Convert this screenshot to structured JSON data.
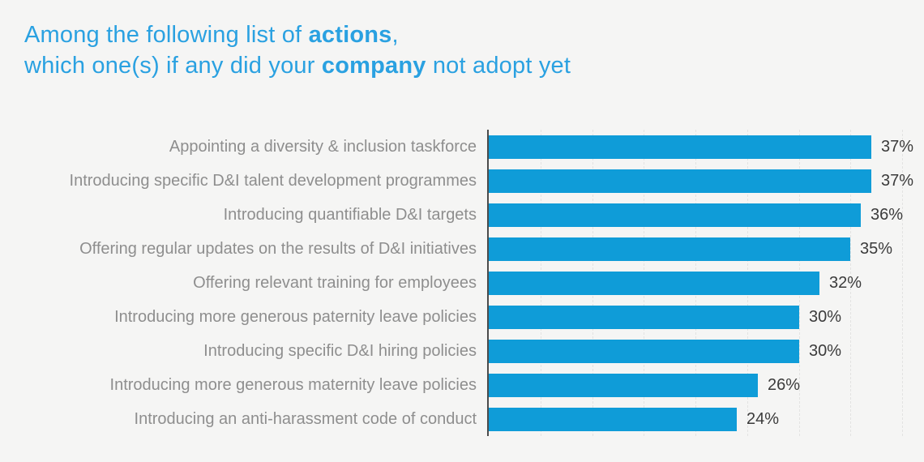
{
  "title": {
    "line1_prefix": "Among the following list of ",
    "line1_bold": "actions",
    "line1_suffix": ",",
    "line2_prefix": "which one(s) if any did your ",
    "line2_bold": "company",
    "line2_suffix": " not adopt yet"
  },
  "colors": {
    "background": "#f5f5f4",
    "title": "#2aa1e1",
    "bar": "#0f9cd8",
    "category_label": "#8e8e8e",
    "value_label": "#3b3b3b",
    "axis": "#4b4b4b",
    "gridline": "#e3e3e2"
  },
  "chart_data": {
    "type": "bar",
    "orientation": "horizontal",
    "title": "Among the following list of actions, which one(s) if any did your company not adopt yet",
    "categories": [
      "Appointing a diversity & inclusion taskforce",
      "Introducing specific D&I talent development programmes",
      "Introducing quantifiable D&I targets",
      "Offering regular updates on the results of D&I initiatives",
      "Offering relevant training for employees",
      "Introducing more generous paternity leave policies",
      "Introducing specific D&I hiring policies",
      "Introducing more generous maternity leave policies",
      "Introducing an anti-harassment code of conduct"
    ],
    "values": [
      37,
      37,
      36,
      35,
      32,
      30,
      30,
      26,
      24
    ],
    "value_labels": [
      "37%",
      "37%",
      "36%",
      "35%",
      "32%",
      "30%",
      "30%",
      "26%",
      "24%"
    ],
    "xlabel": "",
    "ylabel": "",
    "xlim": [
      0,
      42
    ],
    "gridline_step": 5,
    "gridline_max": 40,
    "grid": "vertical-dashed",
    "legend": "none",
    "data_labels": "outside-end"
  }
}
